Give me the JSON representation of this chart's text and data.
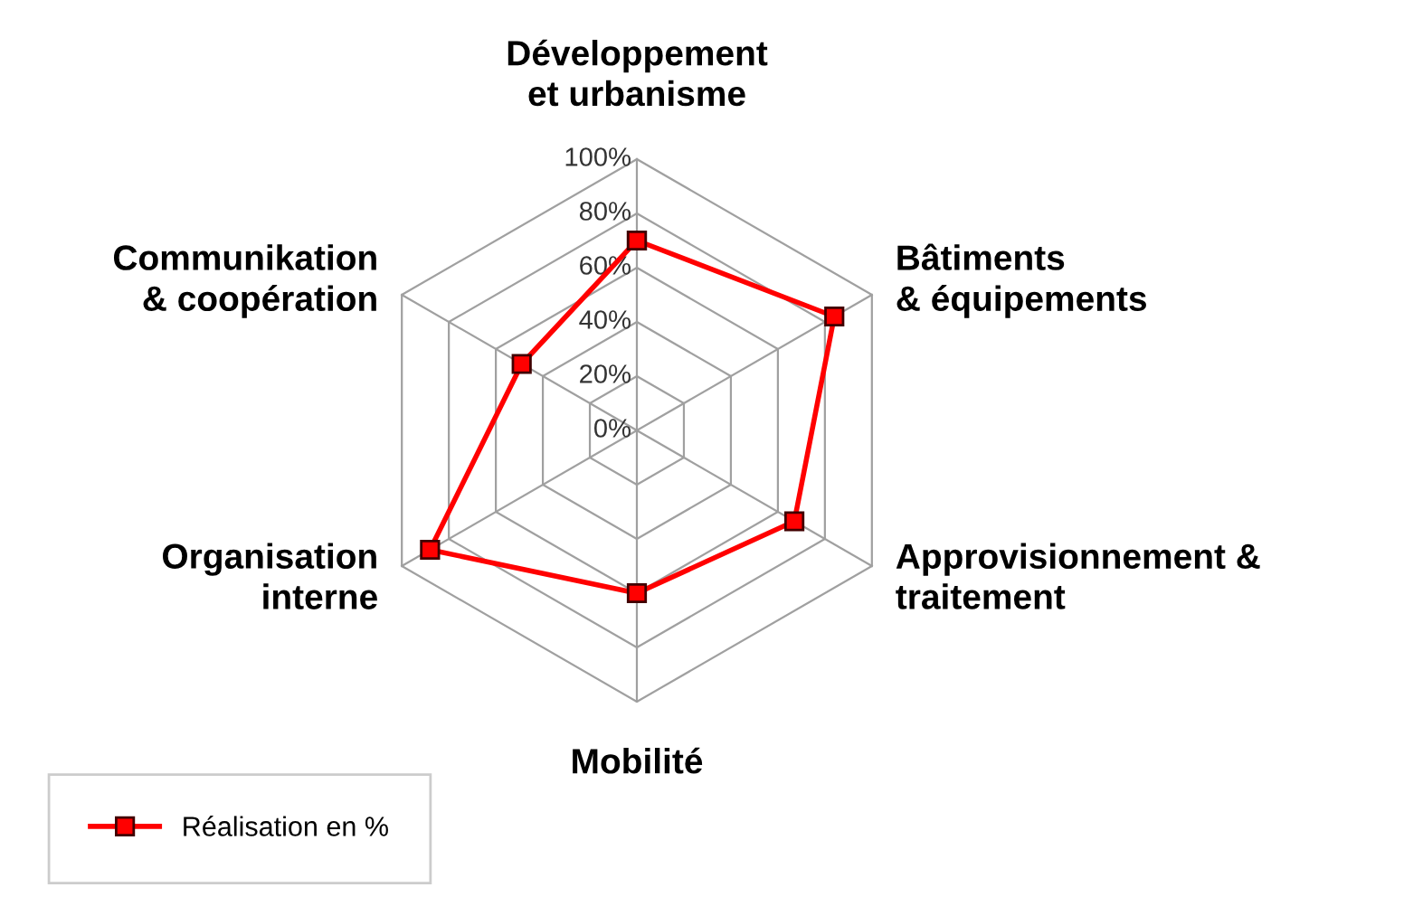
{
  "chart_data": {
    "type": "radar",
    "categories": [
      "Développement\net urbanisme",
      "Bâtiments\n& équipements",
      "Approvisionnement &\ntraitement",
      "Mobilité",
      "Organisation\ninterne",
      "Communikation\n& coopération"
    ],
    "series": [
      {
        "name": "Réalisation en %",
        "color": "#ff0000",
        "values": [
          70,
          84,
          67,
          60,
          88,
          49
        ]
      }
    ],
    "ylim": [
      0,
      100
    ],
    "yticks": [
      {
        "value": 0,
        "label": "0%"
      },
      {
        "value": 20,
        "label": "20%"
      },
      {
        "value": 40,
        "label": "40%"
      },
      {
        "value": 60,
        "label": "60%"
      },
      {
        "value": 80,
        "label": "80%"
      },
      {
        "value": 100,
        "label": "100%"
      }
    ],
    "marker": "square",
    "legend": "bottom left",
    "grid": true
  }
}
